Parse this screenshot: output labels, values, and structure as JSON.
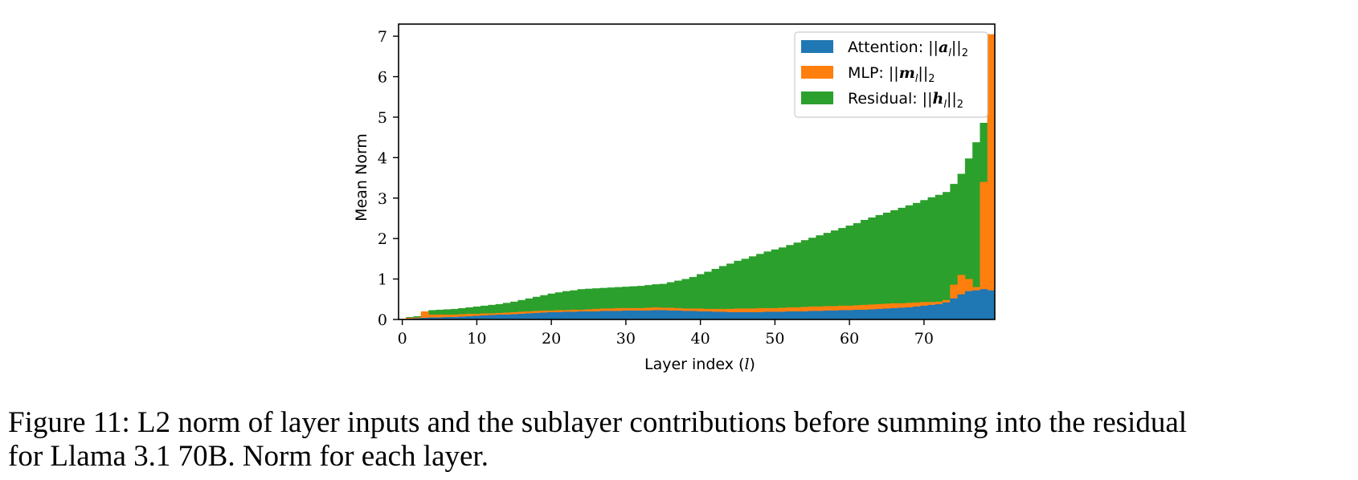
{
  "chart_data": {
    "type": "bar",
    "xlabel": "Layer index (l)",
    "ylabel": "Mean Norm",
    "xlim": [
      -0.5,
      79.5
    ],
    "ylim": [
      0,
      7.3
    ],
    "x_ticks": [
      0,
      10,
      20,
      30,
      40,
      50,
      60,
      70
    ],
    "y_ticks": [
      0,
      1,
      2,
      3,
      4,
      5,
      6,
      7
    ],
    "legend_position": "top-right",
    "grid": false,
    "series": [
      {
        "name": "Residual: ||h_l||_2",
        "legend_label": "Residual: ||hl||2",
        "color": "#2ca02c",
        "values": [
          0.02,
          0.06,
          0.08,
          0.17,
          0.23,
          0.24,
          0.25,
          0.26,
          0.28,
          0.3,
          0.32,
          0.34,
          0.36,
          0.38,
          0.41,
          0.44,
          0.48,
          0.52,
          0.56,
          0.6,
          0.64,
          0.67,
          0.7,
          0.72,
          0.75,
          0.76,
          0.77,
          0.78,
          0.79,
          0.8,
          0.81,
          0.82,
          0.83,
          0.85,
          0.87,
          0.88,
          0.92,
          0.96,
          1.0,
          1.05,
          1.12,
          1.18,
          1.25,
          1.32,
          1.38,
          1.45,
          1.5,
          1.56,
          1.62,
          1.68,
          1.73,
          1.78,
          1.84,
          1.9,
          1.96,
          2.02,
          2.08,
          2.14,
          2.2,
          2.26,
          2.32,
          2.38,
          2.46,
          2.52,
          2.58,
          2.64,
          2.7,
          2.76,
          2.82,
          2.88,
          2.95,
          3.02,
          3.08,
          3.15,
          3.35,
          3.6,
          3.98,
          4.38,
          4.86,
          5.95
        ],
        "note": ""
      },
      {
        "name": "MLP: ||m_l||_2",
        "legend_label": "MLP: ||ml||2",
        "color": "#ff7f0e",
        "values": [
          0.02,
          0.04,
          0.05,
          0.2,
          0.12,
          0.12,
          0.12,
          0.12,
          0.13,
          0.14,
          0.14,
          0.15,
          0.15,
          0.16,
          0.17,
          0.18,
          0.19,
          0.2,
          0.21,
          0.22,
          0.22,
          0.23,
          0.23,
          0.24,
          0.24,
          0.25,
          0.26,
          0.27,
          0.27,
          0.28,
          0.28,
          0.28,
          0.28,
          0.29,
          0.3,
          0.29,
          0.29,
          0.28,
          0.27,
          0.27,
          0.27,
          0.26,
          0.26,
          0.26,
          0.26,
          0.27,
          0.27,
          0.27,
          0.28,
          0.28,
          0.28,
          0.29,
          0.3,
          0.3,
          0.31,
          0.32,
          0.32,
          0.33,
          0.33,
          0.34,
          0.34,
          0.35,
          0.36,
          0.37,
          0.38,
          0.39,
          0.4,
          0.4,
          0.41,
          0.42,
          0.43,
          0.43,
          0.44,
          0.48,
          0.86,
          1.1,
          1.0,
          0.8,
          3.4,
          7.05
        ]
      },
      {
        "name": "Attention: ||a_l||_2",
        "legend_label": "Attention: ||al||2",
        "color": "#1f77b4",
        "values": [
          0.01,
          0.02,
          0.03,
          0.04,
          0.05,
          0.05,
          0.06,
          0.06,
          0.07,
          0.08,
          0.09,
          0.1,
          0.11,
          0.12,
          0.12,
          0.13,
          0.14,
          0.15,
          0.16,
          0.17,
          0.18,
          0.18,
          0.19,
          0.19,
          0.2,
          0.2,
          0.2,
          0.21,
          0.21,
          0.21,
          0.22,
          0.22,
          0.22,
          0.22,
          0.23,
          0.23,
          0.22,
          0.22,
          0.21,
          0.21,
          0.2,
          0.2,
          0.19,
          0.19,
          0.18,
          0.18,
          0.18,
          0.18,
          0.18,
          0.19,
          0.19,
          0.19,
          0.2,
          0.2,
          0.2,
          0.21,
          0.21,
          0.22,
          0.22,
          0.23,
          0.23,
          0.24,
          0.24,
          0.25,
          0.26,
          0.27,
          0.28,
          0.29,
          0.3,
          0.32,
          0.34,
          0.36,
          0.38,
          0.42,
          0.52,
          0.62,
          0.7,
          0.72,
          0.75,
          0.72
        ]
      }
    ],
    "legend": [
      {
        "color": "#1f77b4",
        "label": "Attention: ||al||2"
      },
      {
        "color": "#ff7f0e",
        "label": "MLP: ||ml||2"
      },
      {
        "color": "#2ca02c",
        "label": "Residual: ||hl||2"
      }
    ]
  },
  "caption": {
    "line1": "Figure 11: L2 norm of layer inputs and the sublayer contributions before summing into the residual",
    "line2": "for Llama 3.1 70B. Norm for each layer."
  }
}
